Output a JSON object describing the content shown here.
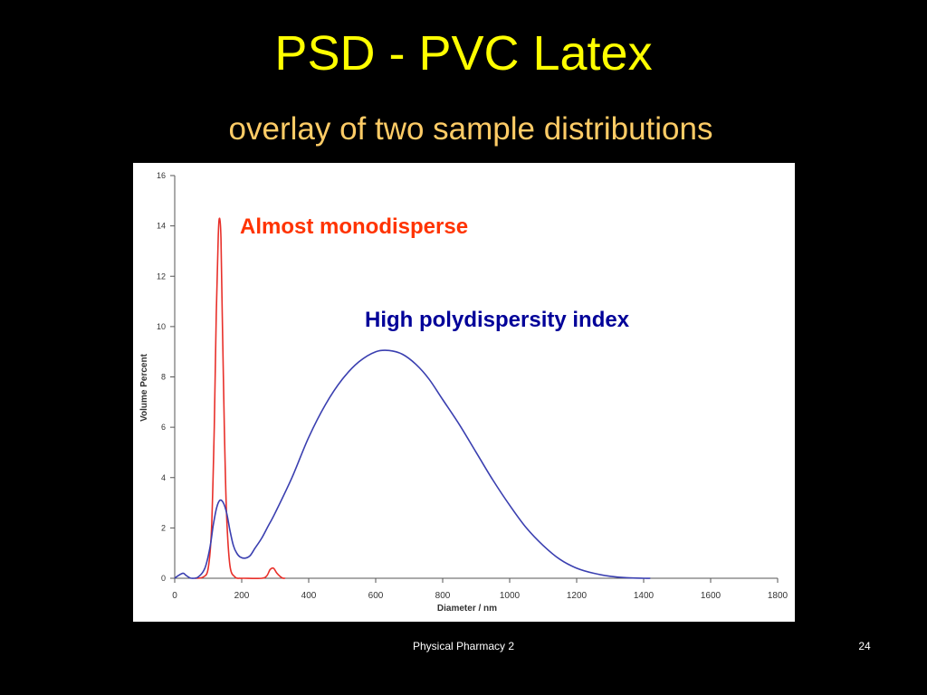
{
  "slide": {
    "title": "PSD - PVC Latex",
    "subtitle": "overlay of two sample distributions",
    "footer": "Physical Pharmacy 2",
    "page_number": "24"
  },
  "colors": {
    "background": "#000000",
    "title": "#ffff00",
    "subtitle": "#ffcc66",
    "series_red": "#e8302a",
    "series_blue": "#3a3fb0",
    "annotation_red": "#ff3300",
    "annotation_blue": "#000099"
  },
  "chart_data": {
    "type": "line",
    "title": "",
    "xlabel": "Diameter / nm",
    "ylabel": "Volume Percent",
    "xlim": [
      0,
      1800
    ],
    "ylim": [
      0,
      16
    ],
    "xticks": [
      0,
      200,
      400,
      600,
      800,
      1000,
      1200,
      1400,
      1600,
      1800
    ],
    "yticks": [
      0,
      2,
      4,
      6,
      8,
      10,
      12,
      14,
      16
    ],
    "grid": false,
    "legend": "none",
    "annotations": [
      {
        "text": "Almost monodisperse",
        "color": "#ff3300"
      },
      {
        "text": "High polydispersity index",
        "color": "#000099"
      }
    ],
    "series": [
      {
        "color": "#e8302a",
        "x": [
          60,
          85,
          100,
          110,
          118,
          124,
          130,
          134,
          138,
          142,
          148,
          155,
          165,
          180,
          195,
          205,
          260,
          275,
          285,
          295,
          305,
          320,
          330
        ],
        "y": [
          0,
          0.05,
          0.4,
          2,
          6,
          10.5,
          13.6,
          14.3,
          13.5,
          10.5,
          6,
          2.5,
          0.5,
          0.05,
          0,
          0,
          0,
          0.1,
          0.35,
          0.4,
          0.2,
          0.02,
          0
        ]
      },
      {
        "color": "#3a3fb0",
        "x": [
          0,
          10,
          25,
          35,
          50,
          70,
          90,
          105,
          115,
          125,
          135,
          145,
          155,
          165,
          175,
          185,
          195,
          210,
          225,
          240,
          260,
          280,
          300,
          350,
          400,
          450,
          500,
          550,
          600,
          640,
          680,
          720,
          760,
          800,
          850,
          900,
          950,
          1000,
          1050,
          1100,
          1150,
          1200,
          1250,
          1300,
          1350,
          1400,
          1420
        ],
        "y": [
          0,
          0.1,
          0.2,
          0.1,
          0,
          0.05,
          0.4,
          1.2,
          2.1,
          2.8,
          3.1,
          3,
          2.6,
          1.9,
          1.3,
          1,
          0.85,
          0.8,
          0.9,
          1.2,
          1.6,
          2.1,
          2.6,
          4,
          5.6,
          6.9,
          7.9,
          8.6,
          9,
          9.05,
          8.9,
          8.5,
          7.9,
          7.1,
          6.1,
          5,
          3.9,
          2.9,
          2,
          1.3,
          0.75,
          0.4,
          0.2,
          0.08,
          0.02,
          0,
          0
        ]
      }
    ]
  }
}
